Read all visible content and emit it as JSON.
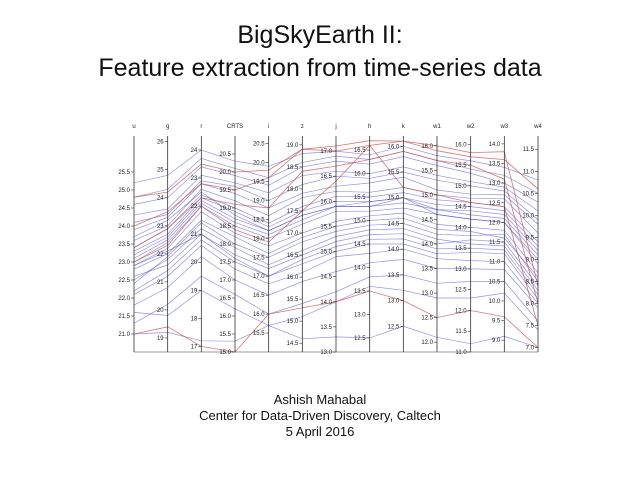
{
  "slide": {
    "title_line1": "BigSkyEarth II:",
    "title_line2": "Feature extraction from time-series data",
    "author": "Ashish Mahabal",
    "affiliation": "Center for Data-Driven Discovery, Caltech",
    "date": "5 April 2016"
  },
  "colors": {
    "main_series": "#3a3ad0",
    "highlight_series": "#d04a4a",
    "axis": "#333333"
  },
  "chart_data": {
    "type": "parallel-coordinates",
    "title": "",
    "axes": [
      {
        "name": "u",
        "range": [
          20.5,
          26.5
        ],
        "ticks": [
          "25.5",
          "25.0",
          "24.5",
          "24.0",
          "23.5",
          "23.0",
          "22.5",
          "22.0",
          "21.5",
          "21.0"
        ],
        "tick_values": [
          25.5,
          25.0,
          24.5,
          24.0,
          23.5,
          23.0,
          22.5,
          22.0,
          21.5,
          21.0
        ]
      },
      {
        "name": "g",
        "range": [
          18.5,
          26.2
        ],
        "ticks": [
          "26",
          "25",
          "24",
          "23",
          "22",
          "21",
          "20",
          "19"
        ],
        "tick_values": [
          26,
          25,
          24,
          23,
          22,
          21,
          20,
          19
        ]
      },
      {
        "name": "r",
        "range": [
          16.8,
          24.5
        ],
        "ticks": [
          "24",
          "23",
          "22",
          "21",
          "20",
          "19",
          "18",
          "17"
        ],
        "tick_values": [
          24,
          23,
          22,
          21,
          20,
          19,
          18,
          17
        ]
      },
      {
        "name": "CRTS",
        "range": [
          15.0,
          21.0
        ],
        "ticks": [
          "20.5",
          "20.0",
          "19.5",
          "19.0",
          "18.5",
          "18.0",
          "17.5",
          "17.0",
          "16.5",
          "16.0",
          "15.5",
          "15.0"
        ],
        "tick_values": [
          20.5,
          20.0,
          19.5,
          19.0,
          18.5,
          18.0,
          17.5,
          17.0,
          16.5,
          16.0,
          15.5,
          15.0
        ]
      },
      {
        "name": "i",
        "range": [
          15.0,
          20.7
        ],
        "ticks": [
          "20.5",
          "20.0",
          "19.5",
          "19.0",
          "18.5",
          "18.0",
          "17.5",
          "17.0",
          "16.5",
          "16.0",
          "15.5"
        ],
        "tick_values": [
          20.5,
          20.0,
          19.5,
          19.0,
          18.5,
          18.0,
          17.5,
          17.0,
          16.5,
          16.0,
          15.5
        ]
      },
      {
        "name": "z",
        "range": [
          14.3,
          19.2
        ],
        "ticks": [
          "19.0",
          "18.5",
          "18.0",
          "17.5",
          "17.0",
          "16.5",
          "16.0",
          "15.5",
          "15.0",
          "14.5"
        ],
        "tick_values": [
          19.0,
          18.5,
          18.0,
          17.5,
          17.0,
          16.5,
          16.0,
          15.5,
          15.0,
          14.5
        ]
      },
      {
        "name": "j",
        "range": [
          13.0,
          17.3
        ],
        "ticks": [
          "17.0",
          "16.5",
          "16.0",
          "15.5",
          "15.0",
          "14.5",
          "14.0",
          "13.5",
          "13.0"
        ],
        "tick_values": [
          17.0,
          16.5,
          16.0,
          15.5,
          15.0,
          14.5,
          14.0,
          13.5,
          13.0
        ]
      },
      {
        "name": "h",
        "range": [
          12.2,
          16.8
        ],
        "ticks": [
          "16.5",
          "16.0",
          "15.5",
          "15.0",
          "14.5",
          "14.0",
          "13.5",
          "13.0",
          "12.5"
        ],
        "tick_values": [
          16.5,
          16.0,
          15.5,
          15.0,
          14.5,
          14.0,
          13.5,
          13.0,
          12.5
        ]
      },
      {
        "name": "k",
        "range": [
          12.0,
          16.2
        ],
        "ticks": [
          "16.0",
          "15.5",
          "15.0",
          "14.5",
          "14.0",
          "13.5",
          "13.0",
          "12.5"
        ],
        "tick_values": [
          16.0,
          15.5,
          15.0,
          14.5,
          14.0,
          13.5,
          13.0,
          12.5
        ]
      },
      {
        "name": "w1",
        "range": [
          11.8,
          16.2
        ],
        "ticks": [
          "16.0",
          "15.5",
          "15.0",
          "14.5",
          "14.0",
          "13.5",
          "13.0",
          "12.5",
          "12.0"
        ],
        "tick_values": [
          16.0,
          15.5,
          15.0,
          14.5,
          14.0,
          13.5,
          13.0,
          12.5,
          12.0
        ]
      },
      {
        "name": "w2",
        "range": [
          11.0,
          16.2
        ],
        "ticks": [
          "16.0",
          "15.5",
          "15.0",
          "14.5",
          "14.0",
          "13.5",
          "13.0",
          "12.5",
          "12.0",
          "11.5",
          "11.0"
        ],
        "tick_values": [
          16.0,
          15.5,
          15.0,
          14.5,
          14.0,
          13.5,
          13.0,
          12.5,
          12.0,
          11.5,
          11.0
        ]
      },
      {
        "name": "w3",
        "range": [
          8.7,
          14.2
        ],
        "ticks": [
          "14.0",
          "13.5",
          "13.0",
          "12.5",
          "12.0",
          "11.5",
          "11.0",
          "10.5",
          "10.0",
          "9.5",
          "9.0"
        ],
        "tick_values": [
          14.0,
          13.5,
          13.0,
          12.5,
          12.0,
          11.5,
          11.0,
          10.5,
          10.0,
          9.5,
          9.0
        ]
      },
      {
        "name": "w4",
        "range": [
          6.9,
          11.8
        ],
        "ticks": [
          "11.5",
          "11.0",
          "10.5",
          "10.0",
          "9.5",
          "9.0",
          "8.5",
          "8.0",
          "7.5",
          "7.0"
        ],
        "tick_values": [
          11.5,
          11.0,
          10.5,
          10.0,
          9.5,
          9.0,
          8.5,
          8.0,
          7.5,
          7.0
        ]
      }
    ],
    "series": [
      {
        "color": "main",
        "values": [
          23.0,
          22.4,
          22.0,
          18.5,
          18.0,
          17.2,
          15.8,
          15.2,
          14.8,
          14.6,
          14.2,
          12.0,
          9.0
        ]
      },
      {
        "color": "main",
        "values": [
          22.8,
          22.0,
          21.5,
          18.2,
          17.6,
          16.9,
          15.5,
          15.0,
          14.6,
          14.3,
          13.9,
          11.6,
          8.6
        ]
      },
      {
        "color": "main",
        "values": [
          23.3,
          22.7,
          22.3,
          18.9,
          18.3,
          17.5,
          16.0,
          15.4,
          15.0,
          14.8,
          14.5,
          12.3,
          9.3
        ]
      },
      {
        "color": "main",
        "values": [
          22.5,
          21.8,
          21.2,
          17.9,
          17.3,
          16.6,
          15.3,
          14.8,
          14.4,
          14.1,
          13.6,
          11.4,
          8.3
        ]
      },
      {
        "color": "main",
        "values": [
          23.6,
          23.0,
          22.6,
          19.2,
          18.6,
          17.8,
          16.2,
          15.6,
          15.2,
          15.0,
          14.7,
          12.6,
          9.6
        ]
      },
      {
        "color": "main",
        "values": [
          24.1,
          23.4,
          22.9,
          19.6,
          19.0,
          18.1,
          16.5,
          15.9,
          15.5,
          15.3,
          15.0,
          12.8,
          9.9
        ]
      },
      {
        "color": "main",
        "values": [
          22.2,
          21.4,
          20.8,
          17.5,
          17.0,
          16.3,
          15.0,
          14.5,
          14.1,
          13.8,
          13.4,
          11.2,
          8.1
        ]
      },
      {
        "color": "main",
        "values": [
          21.8,
          20.8,
          20.2,
          17.0,
          16.5,
          15.9,
          14.6,
          14.1,
          13.8,
          13.5,
          13.0,
          10.8,
          7.9
        ]
      },
      {
        "color": "main",
        "values": [
          21.3,
          20.2,
          19.5,
          16.6,
          16.0,
          15.4,
          14.2,
          13.8,
          13.5,
          13.2,
          12.7,
          10.5,
          7.6
        ]
      },
      {
        "color": "main",
        "values": [
          23.9,
          23.3,
          22.8,
          19.4,
          18.8,
          17.9,
          16.3,
          15.8,
          15.4,
          15.1,
          14.8,
          12.7,
          9.8
        ]
      },
      {
        "color": "main",
        "values": [
          24.6,
          24.0,
          23.4,
          19.9,
          19.4,
          18.5,
          16.8,
          16.2,
          15.8,
          15.6,
          15.3,
          13.0,
          10.3
        ]
      },
      {
        "color": "main",
        "values": [
          25.2,
          24.8,
          24.0,
          20.3,
          19.9,
          18.8,
          17.0,
          16.4,
          16.0,
          15.8,
          15.6,
          13.4,
          10.8
        ]
      },
      {
        "color": "main",
        "values": [
          22.9,
          22.2,
          21.8,
          18.3,
          17.8,
          17.0,
          15.6,
          15.1,
          14.7,
          14.4,
          14.0,
          11.8,
          8.7
        ]
      },
      {
        "color": "main",
        "values": [
          23.1,
          22.5,
          22.1,
          18.6,
          18.1,
          17.3,
          15.9,
          15.3,
          14.9,
          14.7,
          14.3,
          12.1,
          9.1
        ]
      },
      {
        "color": "main",
        "values": [
          22.6,
          21.6,
          21.0,
          17.7,
          17.2,
          16.5,
          15.2,
          14.7,
          14.3,
          14.0,
          13.7,
          11.5,
          8.4
        ]
      },
      {
        "color": "main",
        "values": [
          23.4,
          22.9,
          22.4,
          19.0,
          18.4,
          17.6,
          16.1,
          15.5,
          15.1,
          14.9,
          14.6,
          12.4,
          9.4
        ]
      },
      {
        "color": "main",
        "values": [
          22.1,
          21.2,
          20.6,
          17.3,
          16.8,
          16.1,
          14.9,
          14.3,
          14.0,
          13.7,
          13.2,
          11.0,
          8.0
        ]
      },
      {
        "color": "main",
        "values": [
          24.3,
          23.6,
          23.1,
          19.7,
          19.2,
          18.3,
          16.6,
          16.0,
          15.6,
          15.4,
          15.1,
          12.9,
          10.1
        ]
      },
      {
        "color": "main",
        "values": [
          23.7,
          23.2,
          22.5,
          18.8,
          18.2,
          17.4,
          15.9,
          15.4,
          15.0,
          14.7,
          14.4,
          12.2,
          9.2
        ]
      },
      {
        "color": "main",
        "values": [
          22.4,
          21.9,
          21.4,
          18.0,
          17.5,
          16.8,
          15.4,
          14.9,
          14.5,
          14.2,
          13.8,
          11.7,
          8.5
        ]
      },
      {
        "color": "main",
        "values": [
          21.6,
          19.8,
          19.0,
          16.2,
          15.7,
          15.1,
          14.0,
          13.6,
          13.2,
          12.9,
          12.3,
          10.2,
          7.4
        ]
      },
      {
        "color": "main",
        "values": [
          22.9,
          22.1,
          21.0,
          17.6,
          17.0,
          16.4,
          15.1,
          14.6,
          14.2,
          13.9,
          13.5,
          11.3,
          8.2
        ]
      },
      {
        "color": "main",
        "values": [
          24.8,
          24.3,
          23.7,
          20.1,
          19.6,
          18.6,
          16.9,
          16.3,
          15.9,
          15.7,
          15.4,
          13.2,
          10.5
        ]
      },
      {
        "color": "main",
        "values": [
          23.2,
          22.6,
          22.2,
          18.7,
          18.2,
          17.4,
          15.9,
          15.3,
          15.0,
          14.6,
          14.2,
          12.0,
          8.9
        ]
      },
      {
        "color": "main",
        "values": [
          21.0,
          19.2,
          17.2,
          15.3,
          15.7,
          14.6,
          13.3,
          12.5,
          12.5,
          12.1,
          11.2,
          9.1,
          7.0
        ]
      },
      {
        "color": "highlight",
        "values": [
          24.0,
          23.5,
          22.8,
          19.5,
          19.6,
          18.9,
          17.0,
          16.6,
          16.1,
          15.9,
          15.7,
          13.6,
          10.6
        ]
      },
      {
        "color": "highlight",
        "values": [
          23.4,
          22.9,
          22.3,
          19.1,
          18.8,
          18.4,
          16.7,
          16.3,
          15.9,
          15.7,
          15.5,
          13.1,
          8.0
        ]
      },
      {
        "color": "highlight",
        "values": [
          24.8,
          24.2,
          23.5,
          20.0,
          19.8,
          18.9,
          17.1,
          16.7,
          16.1,
          16.0,
          15.8,
          13.8,
          8.4
        ]
      },
      {
        "color": "highlight",
        "values": [
          23.0,
          22.3,
          22.0,
          18.4,
          17.9,
          17.5,
          16.4,
          16.6,
          15.2,
          15.0,
          14.6,
          12.4,
          7.5
        ]
      },
      {
        "color": "highlight",
        "values": [
          21.0,
          19.4,
          17.0,
          15.0,
          16.0,
          15.3,
          14.0,
          13.5,
          13.0,
          12.5,
          12.0,
          9.6,
          7.0
        ]
      }
    ]
  }
}
